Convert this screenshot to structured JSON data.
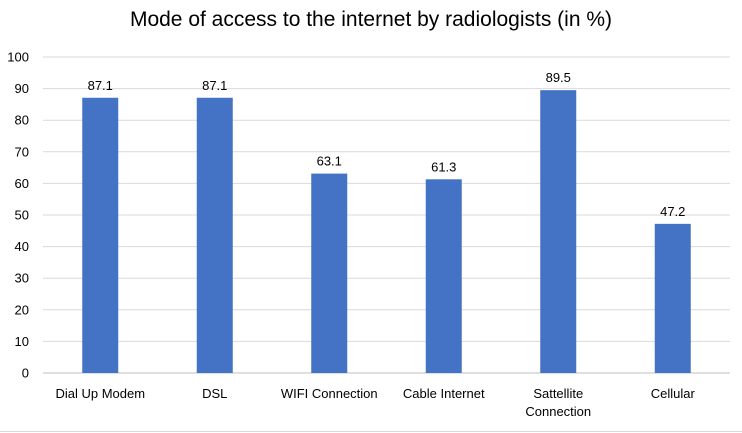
{
  "chart_data": {
    "type": "bar",
    "title": "Mode of access to the internet by radiologists (in %)",
    "xlabel": "",
    "ylabel": "",
    "categories": [
      [
        "Dial Up Modem"
      ],
      [
        "DSL"
      ],
      [
        "WIFI Connection"
      ],
      [
        "Cable Internet"
      ],
      [
        "Sattellite",
        "Connection"
      ],
      [
        "Cellular"
      ]
    ],
    "values": [
      87.1,
      87.1,
      63.1,
      61.3,
      89.5,
      47.2
    ],
    "value_labels": [
      "87.1",
      "87.1",
      "63.1",
      "61.3",
      "89.5",
      "47.2"
    ],
    "ylim": [
      0,
      100
    ],
    "yticks": [
      0,
      10,
      20,
      30,
      40,
      50,
      60,
      70,
      80,
      90,
      100
    ],
    "grid": true,
    "legend": "none",
    "colors": {
      "bar": "#4472C4",
      "grid": "#D9D9D9",
      "axis": "#BFBFBF",
      "bottom_rule": "#D9D9D9"
    }
  }
}
